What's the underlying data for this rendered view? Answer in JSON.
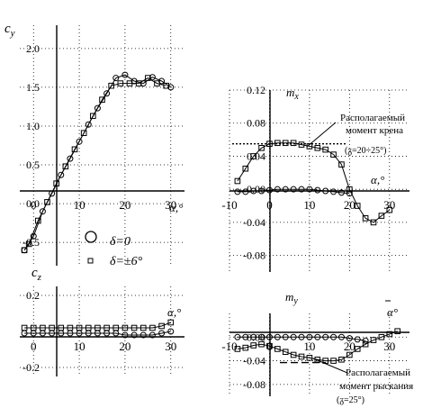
{
  "chart_data": [
    {
      "id": "cy",
      "type": "scatter",
      "ylabel": "c",
      "ylabel_sub": "y",
      "xlabel": "α,°",
      "xlim": [
        -3,
        33
      ],
      "ylim": [
        -0.8,
        2.3
      ],
      "x_ticks": [
        "0",
        "10",
        "20",
        "30"
      ],
      "y_ticks": [
        "2.0",
        "1.5",
        "1.0",
        "0.5",
        "0.0",
        "-0.5"
      ],
      "legend": [
        {
          "marker": "circle",
          "label": "δ=0"
        },
        {
          "marker": "square",
          "label": "δ=±6°"
        }
      ],
      "series": [
        {
          "marker": "circle",
          "x": [
            -2,
            0,
            2,
            4,
            6,
            8,
            10,
            12,
            14,
            16,
            18,
            20,
            22,
            24,
            26,
            28,
            30
          ],
          "y": [
            -0.6,
            -0.42,
            -0.1,
            0.13,
            0.37,
            0.58,
            0.8,
            1.02,
            1.23,
            1.42,
            1.62,
            1.66,
            1.58,
            1.55,
            1.63,
            1.58,
            1.5
          ]
        },
        {
          "marker": "square",
          "x": [
            -2,
            -1,
            1,
            3,
            5,
            7,
            9,
            11,
            13,
            15,
            17,
            19,
            21,
            23,
            25,
            27,
            29
          ],
          "y": [
            -0.6,
            -0.52,
            -0.22,
            0.02,
            0.26,
            0.48,
            0.7,
            0.91,
            1.13,
            1.34,
            1.52,
            1.55,
            1.55,
            1.55,
            1.62,
            1.55,
            1.52
          ]
        }
      ]
    },
    {
      "id": "mx",
      "type": "line",
      "ylabel": "m",
      "ylabel_sub": "x",
      "xlabel": "α,°",
      "xlim": [
        -10,
        35
      ],
      "ylim": [
        -0.1,
        0.12
      ],
      "x_ticks": [
        "-10",
        "0",
        "10",
        "20",
        "30"
      ],
      "y_ticks": [
        "0.12",
        "0.08",
        "0.04",
        "0.00",
        "-0.04",
        "-0.08"
      ],
      "reference_line": {
        "y": 0.055,
        "label": [
          "Располагаемый",
          "момент крена",
          "(ᵹ=20÷25°)"
        ]
      },
      "series": [
        {
          "marker": "square",
          "x": [
            -8,
            -6,
            -4,
            -2,
            0,
            2,
            4,
            6,
            8,
            10,
            12,
            14,
            16,
            18,
            20,
            22,
            24,
            26,
            28,
            30
          ],
          "y": [
            0.01,
            0.025,
            0.04,
            0.05,
            0.055,
            0.056,
            0.056,
            0.056,
            0.054,
            0.052,
            0.05,
            0.048,
            0.042,
            0.03,
            0.0,
            -0.02,
            -0.035,
            -0.04,
            -0.032,
            -0.025
          ]
        },
        {
          "marker": "circle",
          "x": [
            -8,
            -6,
            -4,
            -2,
            0,
            2,
            4,
            6,
            8,
            10,
            12,
            14,
            16,
            18,
            20
          ],
          "y": [
            -0.003,
            -0.003,
            -0.002,
            -0.002,
            -0.001,
            0.0,
            0.0,
            0.0,
            0.0,
            0.0,
            -0.001,
            -0.002,
            -0.003,
            -0.004,
            -0.005
          ]
        }
      ]
    },
    {
      "id": "cz",
      "type": "line",
      "ylabel": "c",
      "ylabel_sub": "z",
      "xlabel": "α,°",
      "xlim": [
        -3,
        33
      ],
      "ylim": [
        -0.25,
        0.25
      ],
      "x_ticks": [
        "0",
        "10",
        "20",
        "30"
      ],
      "y_ticks": [
        "0.2",
        "-0.2"
      ],
      "series": [
        {
          "marker": "square",
          "x": [
            -2,
            0,
            2,
            4,
            6,
            8,
            10,
            12,
            14,
            16,
            18,
            20,
            22,
            24,
            26,
            28,
            30
          ],
          "y": [
            0.02,
            0.02,
            0.02,
            0.02,
            0.02,
            0.02,
            0.02,
            0.02,
            0.02,
            0.02,
            0.02,
            0.02,
            0.02,
            0.02,
            0.02,
            0.03,
            0.05
          ]
        },
        {
          "marker": "circle",
          "x": [
            -2,
            0,
            2,
            4,
            6,
            8,
            10,
            12,
            14,
            16,
            18,
            20,
            22,
            24,
            26,
            28,
            30
          ],
          "y": [
            -0.01,
            -0.01,
            -0.01,
            -0.01,
            -0.01,
            -0.01,
            -0.01,
            -0.01,
            -0.01,
            -0.01,
            -0.01,
            -0.02,
            -0.02,
            -0.02,
            -0.02,
            -0.01,
            0.0
          ]
        }
      ]
    },
    {
      "id": "my",
      "type": "line",
      "ylabel": "m",
      "ylabel_sub": "y",
      "xlabel": "α°",
      "xlim": [
        -10,
        35
      ],
      "ylim": [
        -0.1,
        0.04
      ],
      "x_ticks": [
        "-10",
        "0",
        "10",
        "20",
        "30"
      ],
      "y_ticks": [
        "0.00",
        "-0.04",
        "-0.08"
      ],
      "reference_line": {
        "y": -0.043,
        "label": [
          "Располагаемый",
          "момент рыскания",
          "(ᵹ=25°)"
        ]
      },
      "series": [
        {
          "marker": "square",
          "x": [
            -8,
            -6,
            -4,
            -2,
            0,
            2,
            4,
            6,
            8,
            10,
            12,
            14,
            16,
            18,
            20,
            22,
            24,
            26,
            28,
            30,
            32
          ],
          "y": [
            -0.02,
            -0.018,
            -0.014,
            -0.012,
            -0.015,
            -0.02,
            -0.025,
            -0.03,
            -0.033,
            -0.035,
            -0.038,
            -0.04,
            -0.04,
            -0.038,
            -0.03,
            -0.02,
            -0.012,
            -0.005,
            0.0,
            0.005,
            0.01
          ]
        },
        {
          "marker": "circle",
          "x": [
            -8,
            -6,
            -4,
            -2,
            0,
            2,
            4,
            6,
            8,
            10,
            12,
            14,
            16,
            18,
            20,
            22,
            24
          ],
          "y": [
            0.0,
            0.0,
            0.0,
            0.0,
            0.0,
            0.0,
            0.0,
            0.0,
            0.0,
            0.0,
            0.0,
            0.0,
            0.0,
            0.0,
            -0.002,
            -0.004,
            -0.006
          ]
        }
      ]
    }
  ]
}
